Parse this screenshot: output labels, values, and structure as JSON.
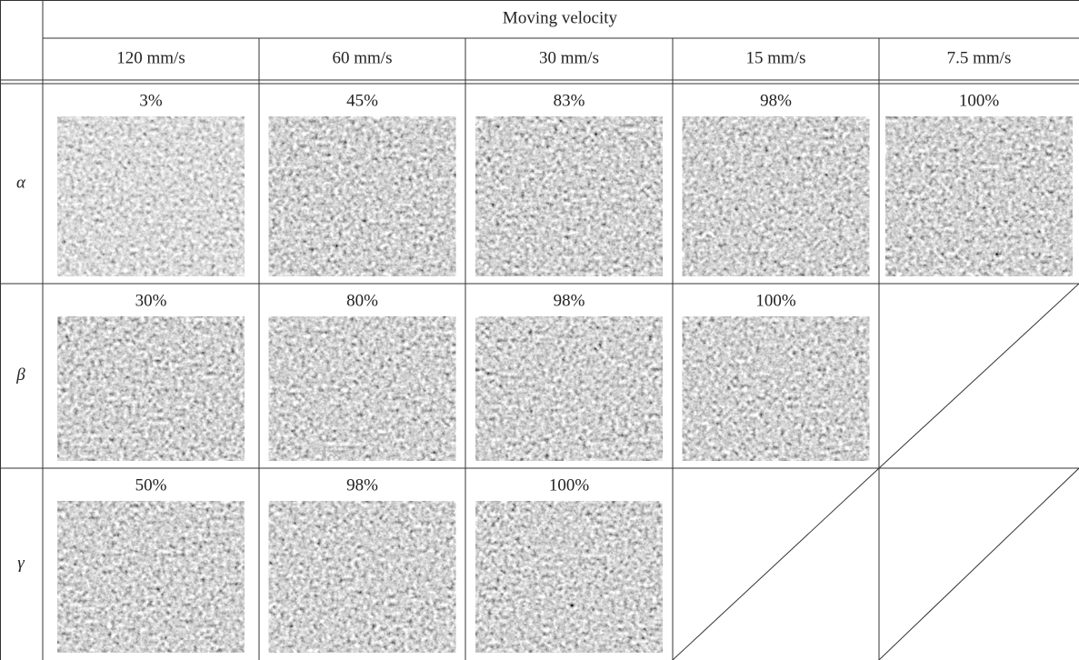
{
  "header": {
    "title": "Moving velocity",
    "columns": [
      "120 mm/s",
      "60 mm/s",
      "30 mm/s",
      "15 mm/s",
      "7.5 mm/s"
    ]
  },
  "table": {
    "rows": [
      {
        "label": "α",
        "cells": [
          "3%",
          "45%",
          "83%",
          "98%",
          "100%"
        ]
      },
      {
        "label": "β",
        "cells": [
          "30%",
          "80%",
          "98%",
          "100%"
        ]
      },
      {
        "label": "γ",
        "cells": [
          "50%",
          "98%",
          "100%"
        ]
      }
    ]
  }
}
